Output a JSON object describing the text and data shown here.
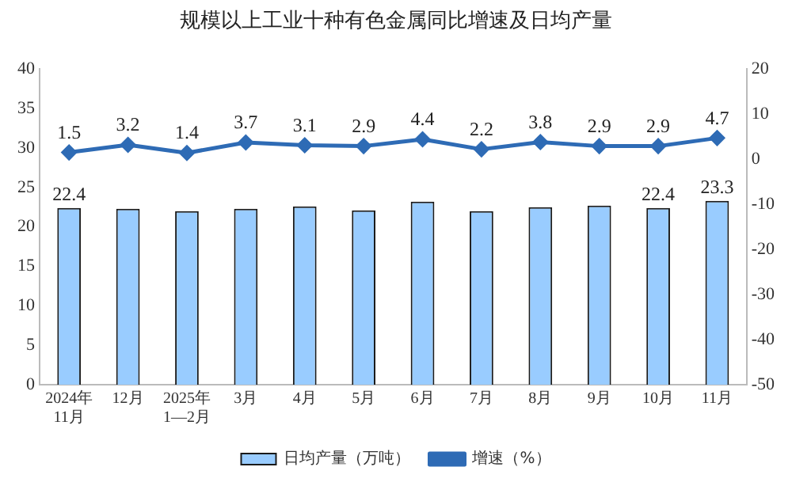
{
  "chart_data": {
    "type": "bar",
    "title": "规模以上工业十种有色金属同比增速及日均产量",
    "categories": [
      "2024年\n11月",
      "12月",
      "2025年\n1—2月",
      "3月",
      "4月",
      "5月",
      "6月",
      "7月",
      "8月",
      "9月",
      "10月",
      "11月"
    ],
    "series": [
      {
        "name": "日均产量（万吨）",
        "color": "#99ccff",
        "values": [
          22.4,
          22.3,
          22.0,
          22.3,
          22.6,
          22.1,
          23.2,
          22.0,
          22.5,
          22.7,
          22.4,
          23.3
        ],
        "value_labels": [
          "22.4",
          null,
          null,
          null,
          null,
          null,
          null,
          null,
          null,
          null,
          "22.4",
          "23.3"
        ]
      },
      {
        "name": "增速（%）",
        "type": "line",
        "axis": "y2",
        "color": "#2e6bb5",
        "marker": "diamond",
        "values": [
          1.5,
          3.2,
          1.4,
          3.7,
          3.1,
          2.9,
          4.4,
          2.2,
          3.8,
          2.9,
          2.9,
          4.7
        ],
        "value_labels": [
          "1.5",
          "3.2",
          "1.4",
          "3.7",
          "3.1",
          "2.9",
          "4.4",
          "2.2",
          "3.8",
          "2.9",
          "2.9",
          "4.7"
        ]
      }
    ],
    "ylim": [
      0,
      40
    ],
    "yticks": [
      0,
      5,
      10,
      15,
      20,
      25,
      30,
      35,
      40
    ],
    "y2lim": [
      -50,
      20
    ],
    "y2ticks": [
      -50,
      -40,
      -30,
      -20,
      -10,
      0,
      10,
      20
    ],
    "grid": false,
    "legend": "bottom"
  }
}
